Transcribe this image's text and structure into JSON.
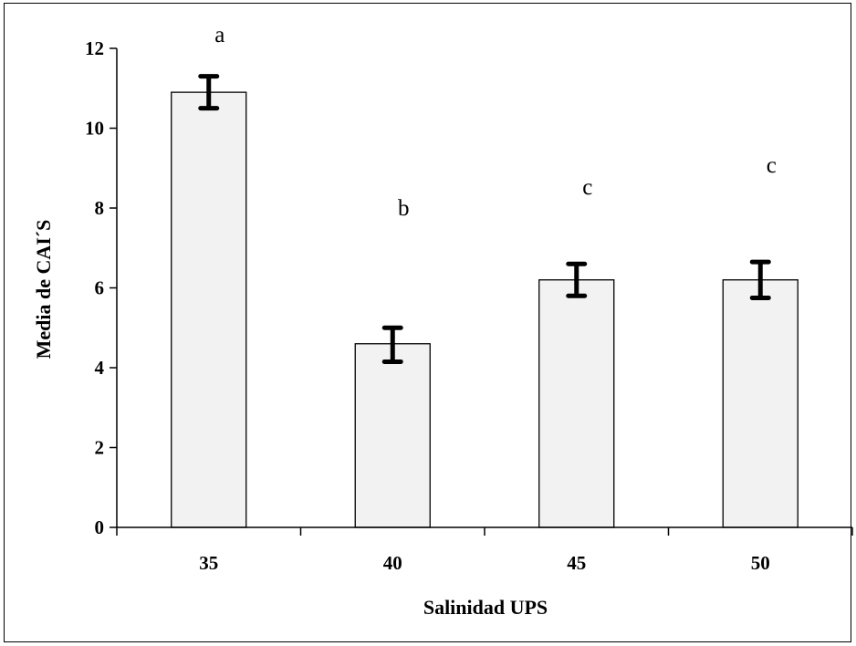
{
  "chart_data": {
    "type": "bar",
    "xlabel": "Salinidad UPS",
    "ylabel": "Media de CAI´S",
    "categories": [
      "35",
      "40",
      "45",
      "50"
    ],
    "values": [
      10.9,
      4.6,
      6.2,
      6.2
    ],
    "error_low": [
      10.5,
      4.15,
      5.8,
      5.75
    ],
    "error_high": [
      11.3,
      5.0,
      6.6,
      6.65
    ],
    "significance_labels": [
      "a",
      "b",
      "c",
      "c"
    ],
    "ylim": [
      0,
      12
    ],
    "yticks": [
      0,
      2,
      4,
      6,
      8,
      10,
      12
    ],
    "grid": false,
    "legend": "none",
    "bar_color": "#f2f2f2",
    "edge_color": "#000000"
  }
}
